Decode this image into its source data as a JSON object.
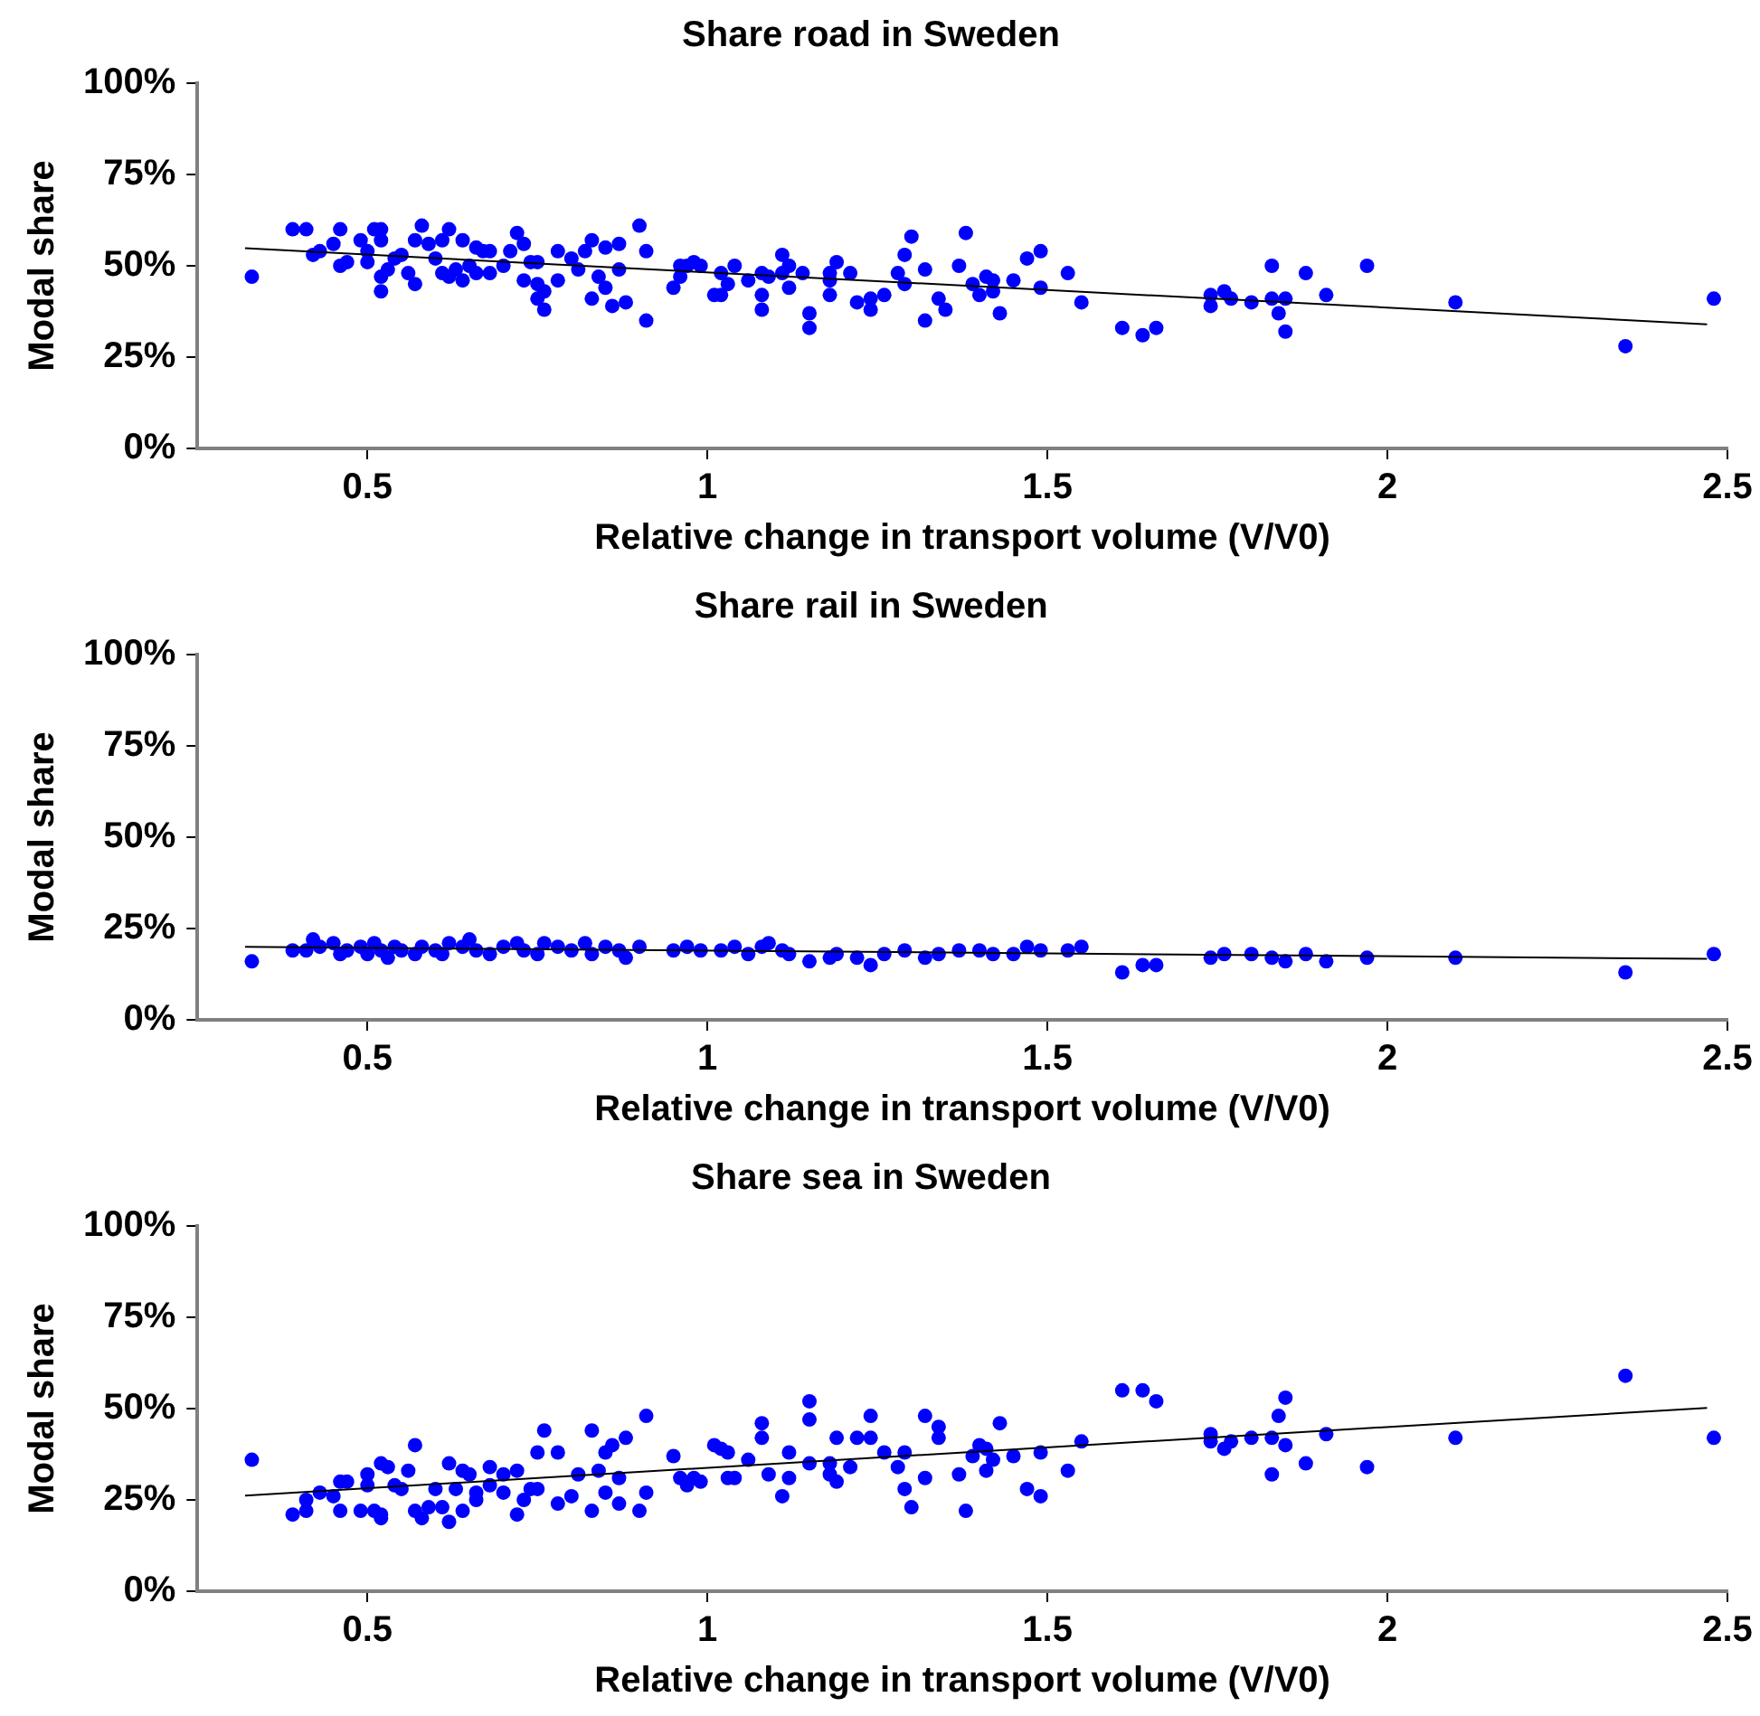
{
  "chart_data": [
    {
      "type": "scatter",
      "title": "Share road in Sweden",
      "xlabel": "Relative change in transport volume (V/V0)",
      "ylabel": "Modal share",
      "xlim": [
        0.25,
        2.5
      ],
      "xticks": [
        0.5,
        1,
        1.5,
        2,
        2.5
      ],
      "ylim": [
        0,
        100
      ],
      "yticks": [
        {
          "value": 0,
          "label": "0%"
        },
        {
          "value": 25,
          "label": "25%"
        },
        {
          "value": 50,
          "label": "50%"
        },
        {
          "value": 75,
          "label": "75%"
        },
        {
          "value": 100,
          "label": "100%"
        }
      ],
      "grid": false,
      "legend": false,
      "marker": "circle",
      "series": [
        {
          "type": "scatter",
          "color": "#0000ff",
          "x": [
            0.33,
            0.39,
            0.41,
            0.42,
            0.43,
            0.45,
            0.46,
            0.46,
            0.47,
            0.49,
            0.5,
            0.5,
            0.51,
            0.52,
            0.52,
            0.52,
            0.52,
            0.53,
            0.54,
            0.55,
            0.56,
            0.57,
            0.57,
            0.58,
            0.59,
            0.6,
            0.61,
            0.62,
            0.61,
            0.62,
            0.63,
            0.64,
            0.64,
            0.65,
            0.66,
            0.66,
            0.67,
            0.68,
            0.68,
            0.7,
            0.72,
            0.71,
            0.73,
            0.73,
            0.74,
            0.75,
            0.75,
            0.75,
            0.76,
            0.76,
            0.78,
            0.78,
            0.81,
            0.8,
            0.82,
            0.83,
            0.83,
            0.84,
            0.85,
            0.85,
            0.86,
            0.87,
            0.87,
            0.88,
            0.9,
            0.91,
            0.91,
            0.95,
            0.96,
            0.96,
            0.97,
            0.98,
            0.99,
            1.01,
            1.02,
            1.02,
            1.03,
            1.04,
            1.06,
            1.08,
            1.08,
            1.08,
            1.09,
            1.11,
            1.11,
            1.12,
            1.12,
            1.14,
            1.15,
            1.15,
            1.18,
            1.18,
            1.18,
            1.19,
            1.21,
            1.22,
            1.24,
            1.24,
            1.26,
            1.28,
            1.29,
            1.29,
            1.3,
            1.32,
            1.32,
            1.34,
            1.35,
            1.37,
            1.38,
            1.39,
            1.4,
            1.41,
            1.42,
            1.42,
            1.43,
            1.45,
            1.47,
            1.49,
            1.49,
            1.53,
            1.55,
            1.61,
            1.64,
            1.66,
            1.74,
            1.74,
            1.76,
            1.77,
            1.8,
            1.83,
            1.83,
            1.84,
            1.85,
            1.85,
            1.88,
            1.91,
            1.97,
            2.1,
            2.35,
            2.48
          ],
          "values": [
            47,
            60,
            60,
            53,
            54,
            56,
            60,
            50,
            51,
            57,
            51,
            54,
            60,
            60,
            57,
            47,
            43,
            49,
            52,
            53,
            48,
            45,
            57,
            61,
            56,
            52,
            57,
            60,
            48,
            47,
            49,
            46,
            57,
            50,
            48,
            55,
            54,
            48,
            54,
            50,
            59,
            54,
            56,
            46,
            51,
            51,
            45,
            41,
            43,
            38,
            54,
            46,
            49,
            52,
            54,
            57,
            41,
            47,
            55,
            44,
            39,
            56,
            49,
            40,
            61,
            35,
            54,
            44,
            50,
            47,
            50,
            51,
            50,
            42,
            42,
            48,
            45,
            50,
            46,
            42,
            38,
            48,
            47,
            53,
            48,
            50,
            44,
            48,
            37,
            33,
            48,
            46,
            42,
            51,
            48,
            40,
            41,
            38,
            42,
            48,
            53,
            45,
            58,
            35,
            49,
            41,
            38,
            50,
            59,
            45,
            42,
            47,
            46,
            43,
            37,
            46,
            52,
            54,
            44,
            48,
            40,
            33,
            31,
            33,
            39,
            42,
            43,
            41,
            40,
            50,
            41,
            37,
            32,
            41,
            48,
            42,
            50,
            40,
            28,
            41
          ]
        },
        {
          "type": "line",
          "color": "#000000",
          "marker": "none",
          "x": [
            0.32,
            2.47
          ],
          "values": [
            54.8,
            34.0
          ]
        }
      ]
    },
    {
      "type": "scatter",
      "title": "Share rail in Sweden",
      "xlabel": "Relative change in transport volume (V/V0)",
      "ylabel": "Modal share",
      "xlim": [
        0.25,
        2.5
      ],
      "xticks": [
        0.5,
        1,
        1.5,
        2,
        2.5
      ],
      "ylim": [
        0,
        100
      ],
      "yticks": [
        {
          "value": 0,
          "label": "0%"
        },
        {
          "value": 25,
          "label": "25%"
        },
        {
          "value": 50,
          "label": "50%"
        },
        {
          "value": 75,
          "label": "75%"
        },
        {
          "value": 100,
          "label": "100%"
        }
      ],
      "grid": false,
      "legend": false,
      "marker": "circle",
      "series": [
        {
          "type": "scatter",
          "color": "#0000ff",
          "x": [
            0.33,
            0.39,
            0.41,
            0.42,
            0.43,
            0.45,
            0.46,
            0.47,
            0.49,
            0.5,
            0.51,
            0.52,
            0.53,
            0.54,
            0.55,
            0.57,
            0.58,
            0.6,
            0.61,
            0.62,
            0.64,
            0.65,
            0.66,
            0.68,
            0.7,
            0.72,
            0.73,
            0.75,
            0.76,
            0.78,
            0.8,
            0.82,
            0.83,
            0.85,
            0.87,
            0.88,
            0.9,
            0.95,
            0.97,
            0.99,
            1.02,
            1.04,
            1.06,
            1.08,
            1.09,
            1.11,
            1.12,
            1.15,
            1.18,
            1.19,
            1.22,
            1.24,
            1.26,
            1.29,
            1.32,
            1.34,
            1.37,
            1.4,
            1.42,
            1.45,
            1.47,
            1.49,
            1.53,
            1.55,
            1.61,
            1.64,
            1.66,
            1.74,
            1.76,
            1.8,
            1.83,
            1.85,
            1.88,
            1.91,
            1.97,
            2.1,
            2.35,
            2.48
          ],
          "values": [
            16,
            19,
            19,
            22,
            20,
            21,
            18,
            19,
            20,
            18,
            21,
            19,
            17,
            20,
            19,
            18,
            20,
            19,
            18,
            21,
            20,
            22,
            19,
            18,
            20,
            21,
            19,
            18,
            21,
            20,
            19,
            21,
            18,
            20,
            19,
            17,
            20,
            19,
            20,
            19,
            19,
            20,
            18,
            20,
            21,
            19,
            18,
            16,
            17,
            18,
            17,
            15,
            18,
            19,
            17,
            18,
            19,
            19,
            18,
            18,
            20,
            19,
            19,
            20,
            13,
            15,
            15,
            17,
            18,
            18,
            17,
            16,
            18,
            16,
            17,
            17,
            13,
            18
          ]
        },
        {
          "type": "line",
          "color": "#000000",
          "marker": "none",
          "x": [
            0.32,
            2.47
          ],
          "values": [
            20.0,
            16.7
          ]
        }
      ]
    },
    {
      "type": "scatter",
      "title": "Share sea in Sweden",
      "xlabel": "Relative change in transport volume (V/V0)",
      "ylabel": "Modal share",
      "xlim": [
        0.25,
        2.5
      ],
      "xticks": [
        0.5,
        1,
        1.5,
        2,
        2.5
      ],
      "ylim": [
        0,
        100
      ],
      "yticks": [
        {
          "value": 0,
          "label": "0%"
        },
        {
          "value": 25,
          "label": "25%"
        },
        {
          "value": 50,
          "label": "50%"
        },
        {
          "value": 75,
          "label": "75%"
        },
        {
          "value": 100,
          "label": "100%"
        }
      ],
      "grid": false,
      "legend": false,
      "marker": "circle",
      "series": [
        {
          "type": "scatter",
          "color": "#0000ff",
          "x": [
            0.33,
            0.39,
            0.41,
            0.41,
            0.43,
            0.45,
            0.46,
            0.46,
            0.47,
            0.49,
            0.5,
            0.5,
            0.51,
            0.52,
            0.52,
            0.52,
            0.53,
            0.54,
            0.55,
            0.56,
            0.57,
            0.57,
            0.58,
            0.59,
            0.6,
            0.61,
            0.62,
            0.62,
            0.63,
            0.64,
            0.64,
            0.65,
            0.66,
            0.66,
            0.68,
            0.68,
            0.7,
            0.7,
            0.72,
            0.72,
            0.73,
            0.74,
            0.75,
            0.75,
            0.76,
            0.78,
            0.78,
            0.8,
            0.81,
            0.83,
            0.83,
            0.84,
            0.85,
            0.85,
            0.86,
            0.87,
            0.87,
            0.88,
            0.9,
            0.91,
            0.91,
            0.95,
            0.96,
            0.97,
            0.98,
            0.99,
            1.01,
            1.02,
            1.03,
            1.03,
            1.04,
            1.06,
            1.08,
            1.08,
            1.09,
            1.11,
            1.12,
            1.12,
            1.15,
            1.15,
            1.15,
            1.18,
            1.18,
            1.19,
            1.19,
            1.21,
            1.22,
            1.24,
            1.24,
            1.26,
            1.28,
            1.29,
            1.29,
            1.3,
            1.32,
            1.32,
            1.34,
            1.34,
            1.37,
            1.38,
            1.39,
            1.4,
            1.41,
            1.41,
            1.42,
            1.43,
            1.45,
            1.47,
            1.49,
            1.49,
            1.53,
            1.55,
            1.61,
            1.64,
            1.66,
            1.74,
            1.74,
            1.76,
            1.77,
            1.8,
            1.83,
            1.83,
            1.84,
            1.85,
            1.85,
            1.88,
            1.91,
            1.97,
            2.1,
            2.35,
            2.48
          ],
          "values": [
            36,
            21,
            22,
            25,
            27,
            26,
            22,
            30,
            30,
            22,
            29,
            32,
            22,
            21,
            35,
            20,
            34,
            29,
            28,
            33,
            40,
            22,
            20,
            23,
            28,
            23,
            35,
            19,
            28,
            33,
            22,
            32,
            27,
            25,
            34,
            29,
            27,
            32,
            21,
            33,
            25,
            28,
            38,
            28,
            44,
            38,
            24,
            26,
            32,
            22,
            44,
            33,
            27,
            38,
            40,
            31,
            24,
            42,
            22,
            48,
            27,
            37,
            31,
            29,
            31,
            30,
            40,
            39,
            38,
            31,
            31,
            36,
            46,
            42,
            32,
            26,
            38,
            31,
            47,
            52,
            35,
            35,
            32,
            30,
            42,
            34,
            42,
            42,
            48,
            38,
            34,
            28,
            38,
            23,
            48,
            31,
            45,
            42,
            32,
            22,
            37,
            40,
            33,
            39,
            36,
            46,
            37,
            28,
            26,
            38,
            33,
            41,
            55,
            55,
            52,
            43,
            41,
            39,
            41,
            42,
            32,
            42,
            48,
            53,
            40,
            35,
            43,
            34,
            42,
            59,
            42
          ]
        },
        {
          "type": "line",
          "color": "#000000",
          "marker": "none",
          "x": [
            0.32,
            2.47
          ],
          "values": [
            26.2,
            50.2
          ]
        }
      ]
    }
  ]
}
